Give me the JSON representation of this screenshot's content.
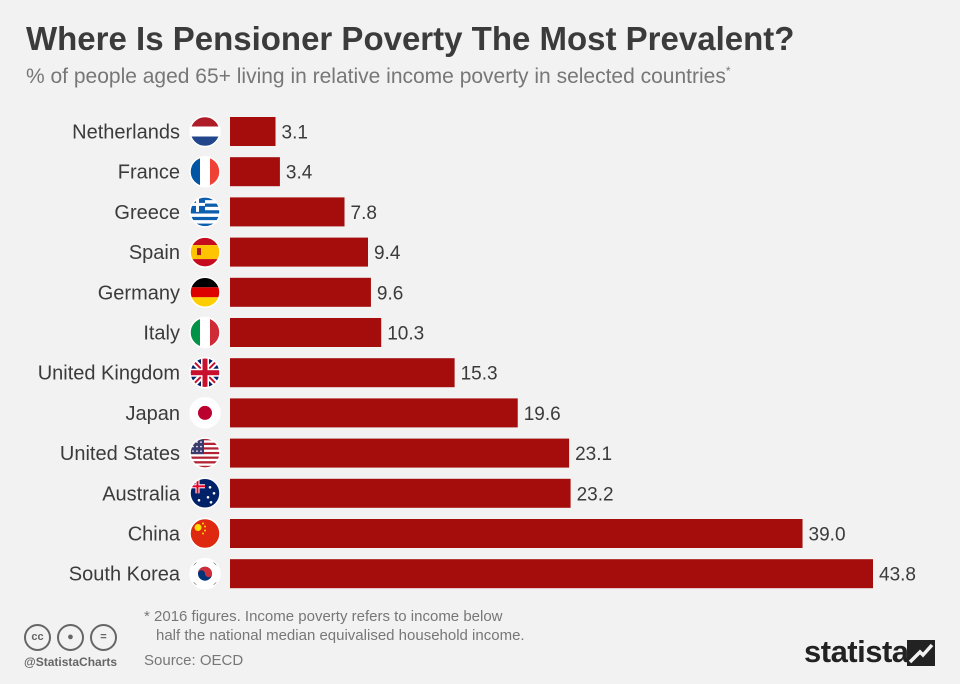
{
  "title": "Where Is Pensioner Poverty The Most Prevalent?",
  "subtitle": "% of people aged 65+ living in relative income poverty in selected countries",
  "subtitle_marker": "*",
  "footnote_line1": "* 2016 figures. Income poverty refers to income below",
  "footnote_line2": "half the national median equivalised household income.",
  "source": "Source: OECD",
  "handle": "@StatistaCharts",
  "brand": "statista",
  "colors": {
    "bar": "#a50d0d",
    "label": "#3b3b3b",
    "background": "#f2f2f2"
  },
  "chart_data": {
    "type": "bar",
    "orientation": "horizontal",
    "categories": [
      "Netherlands",
      "France",
      "Greece",
      "Spain",
      "Germany",
      "Italy",
      "United Kingdom",
      "Japan",
      "United States",
      "Australia",
      "China",
      "South Korea"
    ],
    "values": [
      3.1,
      3.4,
      7.8,
      9.4,
      9.6,
      10.3,
      15.3,
      19.6,
      23.1,
      23.2,
      39.0,
      43.8
    ],
    "value_labels": [
      "3.1",
      "3.4",
      "7.8",
      "9.4",
      "9.6",
      "10.3",
      "15.3",
      "19.6",
      "23.1",
      "23.2",
      "39.0",
      "43.8"
    ],
    "flags": [
      "netherlands-flag-icon",
      "france-flag-icon",
      "greece-flag-icon",
      "spain-flag-icon",
      "germany-flag-icon",
      "italy-flag-icon",
      "uk-flag-icon",
      "japan-flag-icon",
      "us-flag-icon",
      "australia-flag-icon",
      "china-flag-icon",
      "south-korea-flag-icon"
    ],
    "xlim": [
      0,
      43.8
    ],
    "grid": false,
    "legend": "none"
  }
}
